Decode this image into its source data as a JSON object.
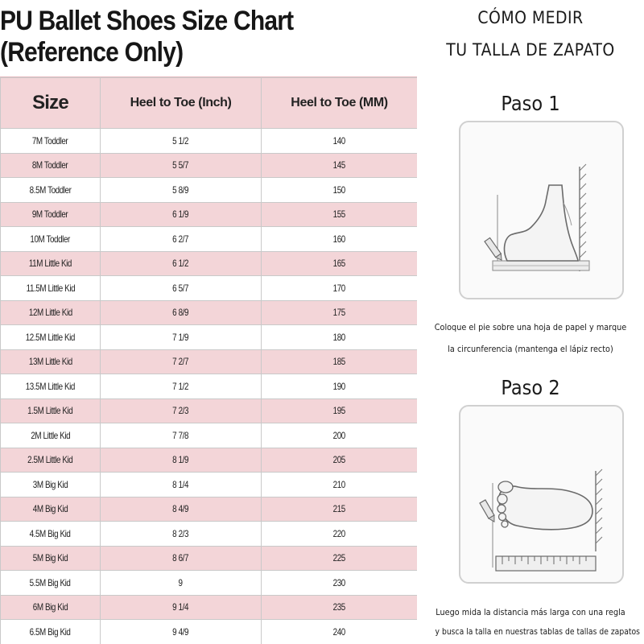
{
  "chart": {
    "title": "PU Ballet Shoes Size Chart (Reference Only)",
    "headers": [
      "Size",
      "Heel to Toe (Inch)",
      "Heel to Toe (MM)"
    ],
    "rows": [
      [
        "7M Toddler",
        "5 1/2",
        "140"
      ],
      [
        "8M Toddler",
        "5 5/7",
        "145"
      ],
      [
        "8.5M Toddler",
        "5 8/9",
        "150"
      ],
      [
        "9M Toddler",
        "6 1/9",
        "155"
      ],
      [
        "10M Toddler",
        "6 2/7",
        "160"
      ],
      [
        "11M Little Kid",
        "6 1/2",
        "165"
      ],
      [
        "11.5M Little Kid",
        "6 5/7",
        "170"
      ],
      [
        "12M Little Kid",
        "6 8/9",
        "175"
      ],
      [
        "12.5M Little Kid",
        "7 1/9",
        "180"
      ],
      [
        "13M Little Kid",
        "7 2/7",
        "185"
      ],
      [
        "13.5M Little Kid",
        "7 1/2",
        "190"
      ],
      [
        "1.5M Little Kid",
        "7 2/3",
        "195"
      ],
      [
        "2M Little Kid",
        "7 7/8",
        "200"
      ],
      [
        "2.5M Little Kid",
        "8 1/9",
        "205"
      ],
      [
        "3M Big Kid",
        "8 1/4",
        "210"
      ],
      [
        "4M Big Kid",
        "8 4/9",
        "215"
      ],
      [
        "4.5M Big Kid",
        "8 2/3",
        "220"
      ],
      [
        "5M Big Kid",
        "8 6/7",
        "225"
      ],
      [
        "5.5M Big Kid",
        "9",
        "230"
      ],
      [
        "6M Big Kid",
        "9 1/4",
        "235"
      ],
      [
        "6.5M Big Kid",
        "9 4/9",
        "240"
      ]
    ],
    "stripe_color": "#f3d5d8"
  },
  "guide": {
    "title_line1": "CÓMO MEDIR",
    "title_line2": "TU TALLA DE ZAPATO",
    "step1": {
      "title": "Paso 1",
      "caption_line1": "Coloque el pie sobre una hoja de papel y marque",
      "caption_line2": "la circunferencia (mantenga el lápiz recto)",
      "icon": "foot-side-view-with-pencil-icon"
    },
    "step2": {
      "title": "Paso 2",
      "caption_line1": "Luego mida la distancia más larga con una regla",
      "caption_line2": "y busca la talla en nuestras tablas de tallas de zapatos",
      "icon": "foot-top-view-with-ruler-icon"
    }
  }
}
